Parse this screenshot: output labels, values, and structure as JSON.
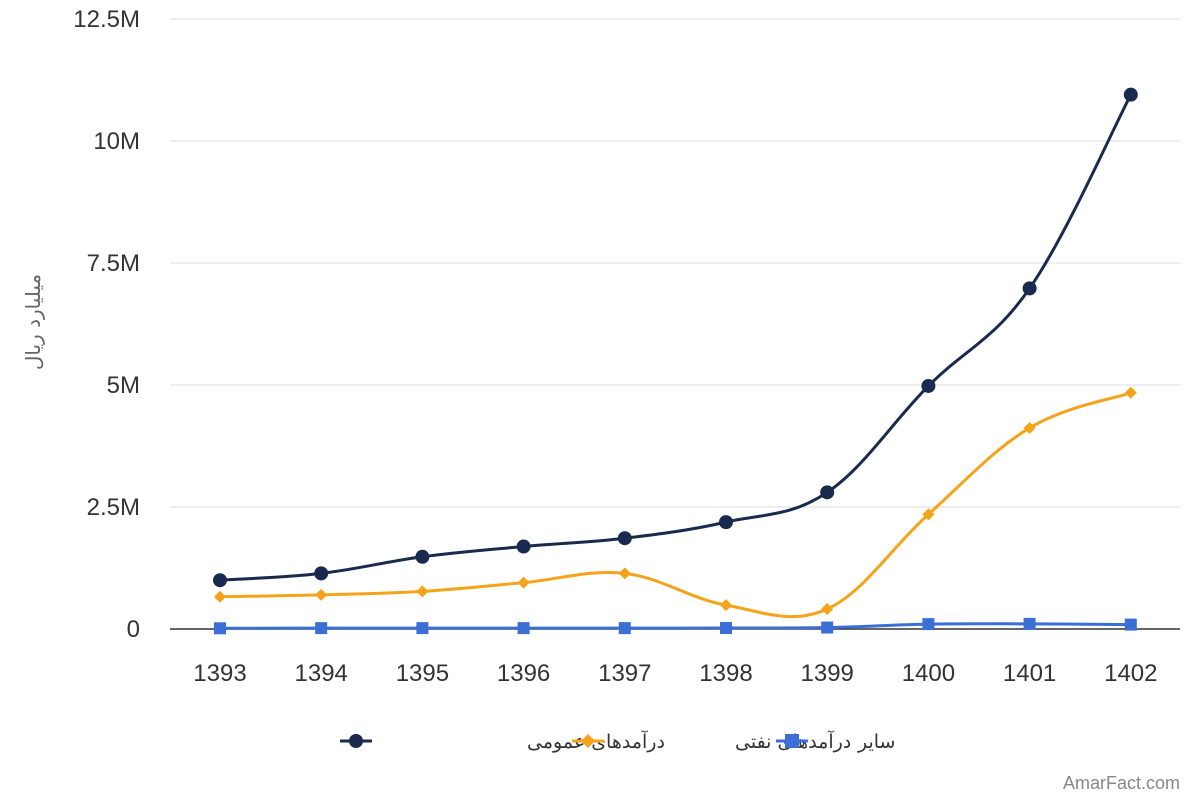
{
  "watermark": "AmarFact.com",
  "chart_data": {
    "type": "line",
    "categories": [
      "1393",
      "1394",
      "1395",
      "1396",
      "1397",
      "1398",
      "1399",
      "1400",
      "1401",
      "1402"
    ],
    "ylabel": "میلیارد ریال",
    "xlabel": "",
    "ylim": [
      0,
      12500000
    ],
    "yticks": [
      0,
      2500000,
      5000000,
      7500000,
      10000000,
      12500000
    ],
    "ytick_labels": [
      "0",
      "2.5M",
      "5M",
      "7.5M",
      "10M",
      "12.5M"
    ],
    "grid": true,
    "smooth": true,
    "legend_position": "bottom",
    "series": [
      {
        "name": "درآمدهای عمومی",
        "color": "#1a2a4f",
        "marker": "circle",
        "values": [
          1000000,
          1140000,
          1480000,
          1690000,
          1860000,
          2190000,
          2800000,
          4980000,
          6980000,
          10950000
        ]
      },
      {
        "name": "درآمدهای نفتی",
        "color": "#f5a31a",
        "marker": "diamond",
        "values": [
          660000,
          700000,
          770000,
          950000,
          1140000,
          490000,
          410000,
          2350000,
          4120000,
          4840000
        ]
      },
      {
        "name": "سایر",
        "color": "#3b6fd6",
        "marker": "square",
        "values": [
          15000,
          18000,
          18000,
          18000,
          18000,
          20000,
          30000,
          100000,
          105000,
          90000
        ]
      }
    ]
  }
}
